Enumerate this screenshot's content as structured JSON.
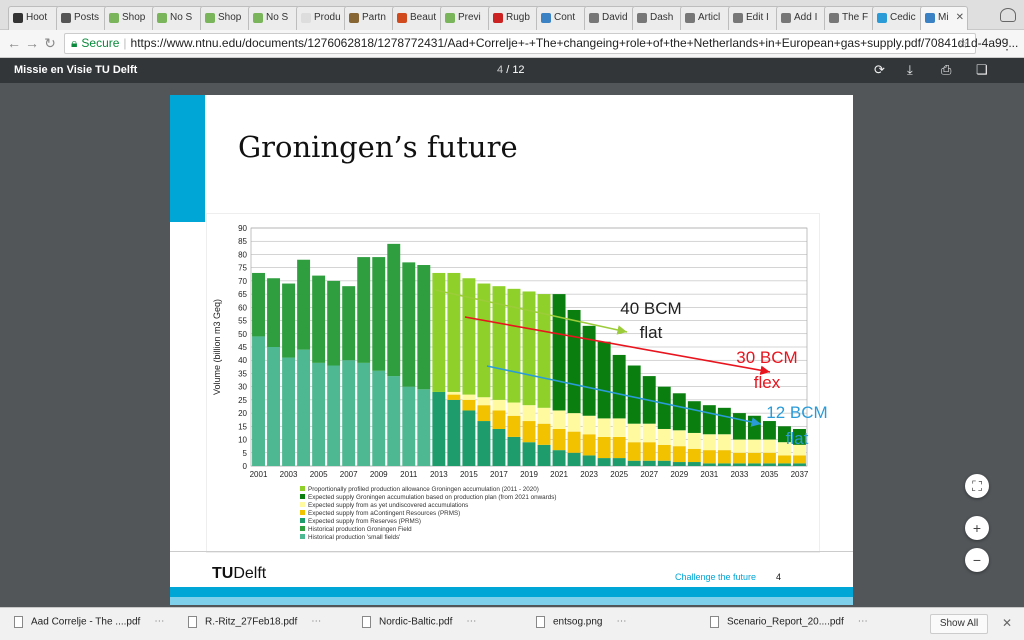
{
  "browser": {
    "tabs": [
      {
        "label": "Hoot",
        "color": "#333333"
      },
      {
        "label": "Posts",
        "color": "#555555"
      },
      {
        "label": "Shop",
        "color": "#7ab55c"
      },
      {
        "label": "No S",
        "color": "#7ab55c"
      },
      {
        "label": "Shop",
        "color": "#7ab55c"
      },
      {
        "label": "No S",
        "color": "#7ab55c"
      },
      {
        "label": "Produ",
        "color": "#dddddd"
      },
      {
        "label": "Partn",
        "color": "#886633"
      },
      {
        "label": "Beaut",
        "color": "#d04a1e"
      },
      {
        "label": "Previ",
        "color": "#7ab55c"
      },
      {
        "label": "Rugb",
        "color": "#cc2222"
      },
      {
        "label": "Cont",
        "color": "#3b82c4"
      },
      {
        "label": "David",
        "color": "#777777"
      },
      {
        "label": "Dash",
        "color": "#777777"
      },
      {
        "label": "Articl",
        "color": "#777777"
      },
      {
        "label": "Edit I",
        "color": "#777777"
      },
      {
        "label": "Add I",
        "color": "#777777"
      },
      {
        "label": "The F",
        "color": "#777777"
      },
      {
        "label": "Cedic",
        "color": "#2b9bd8"
      },
      {
        "label": "Mi",
        "color": "#3b82c4"
      }
    ],
    "secure_label": "Secure",
    "url": "https://www.ntnu.edu/documents/1276062818/1278772431/Aad+Correlje+-+The+changeing+role+of+the+Netherlands+in+European+gas+supply.pdf/70841d1d-4a99..."
  },
  "pdf": {
    "title": "Missie en Visie TU Delft",
    "page_current": "4",
    "page_separator": "/",
    "page_total": "12"
  },
  "slide": {
    "title": "Groningen’s future",
    "logo_prefix": "TU",
    "logo_suffix": "Delft",
    "tagline": "Challenge the future",
    "number": "4"
  },
  "chart_data": {
    "type": "bar",
    "ylabel": "Volume (billion m3 Geq)",
    "ylim": [
      0,
      90
    ],
    "yticks": [
      0,
      5,
      10,
      15,
      20,
      25,
      30,
      35,
      40,
      45,
      50,
      55,
      60,
      65,
      70,
      75,
      80,
      85,
      90
    ],
    "xticks": [
      "2001",
      "2003",
      "2005",
      "2007",
      "2009",
      "2011",
      "2013",
      "2015",
      "2017",
      "2019",
      "2021",
      "2023",
      "2025",
      "2027",
      "2029",
      "2031",
      "2033",
      "2035",
      "2037"
    ],
    "categories": [
      "2001",
      "2002",
      "2003",
      "2004",
      "2005",
      "2006",
      "2007",
      "2008",
      "2009",
      "2010",
      "2011",
      "2012",
      "2013",
      "2014",
      "2015",
      "2016",
      "2017",
      "2018",
      "2019",
      "2020",
      "2021",
      "2022",
      "2023",
      "2024",
      "2025",
      "2026",
      "2027",
      "2028",
      "2029",
      "2030",
      "2031",
      "2032",
      "2033",
      "2034",
      "2035",
      "2036",
      "2037"
    ],
    "series": [
      {
        "name": "Historical production 'small fields'",
        "color": "#4db891",
        "values": [
          49,
          45,
          41,
          44,
          39,
          38,
          40,
          39,
          36,
          34,
          30,
          29,
          0,
          0,
          0,
          0,
          0,
          0,
          0,
          0,
          0,
          0,
          0,
          0,
          0,
          0,
          0,
          0,
          0,
          0,
          0,
          0,
          0,
          0,
          0,
          0,
          0
        ]
      },
      {
        "name": "Historical production Groningen Field",
        "color": "#2e9e3e",
        "values": [
          24,
          26,
          28,
          34,
          33,
          32,
          28,
          40,
          43,
          50,
          47,
          47,
          0,
          0,
          0,
          0,
          0,
          0,
          0,
          0,
          0,
          0,
          0,
          0,
          0,
          0,
          0,
          0,
          0,
          0,
          0,
          0,
          0,
          0,
          0,
          0,
          0
        ]
      },
      {
        "name": "Expected supply from Reserves (PRMS)",
        "color": "#1e9c6c",
        "values": [
          0,
          0,
          0,
          0,
          0,
          0,
          0,
          0,
          0,
          0,
          0,
          0,
          28,
          25,
          21,
          17,
          14,
          11,
          9,
          8,
          6,
          5,
          4,
          3,
          3,
          2,
          2,
          2,
          1.5,
          1.5,
          1,
          1,
          1,
          1,
          1,
          1,
          1
        ]
      },
      {
        "name": "Expected supply from aContingent Resources (PRMS)",
        "color": "#f2c100",
        "values": [
          0,
          0,
          0,
          0,
          0,
          0,
          0,
          0,
          0,
          0,
          0,
          0,
          0,
          2,
          4,
          6,
          7,
          8,
          8,
          8,
          8,
          8,
          8,
          8,
          8,
          7,
          7,
          6,
          6,
          5,
          5,
          5,
          4,
          4,
          4,
          3,
          3
        ]
      },
      {
        "name": "Expected supply from as yet undiscovered accumulations",
        "color": "#fffaa0",
        "values": [
          0,
          0,
          0,
          0,
          0,
          0,
          0,
          0,
          0,
          0,
          0,
          0,
          0,
          1,
          2,
          3,
          4,
          5,
          6,
          6,
          7,
          7,
          7,
          7,
          7,
          7,
          7,
          6,
          6,
          6,
          6,
          6,
          5,
          5,
          5,
          5,
          4
        ]
      },
      {
        "name": "Expected supply Groningen accumulation based on production plan (from 2021 onwards)",
        "color": "#0a7f10",
        "values": [
          0,
          0,
          0,
          0,
          0,
          0,
          0,
          0,
          0,
          0,
          0,
          0,
          0,
          0,
          0,
          0,
          0,
          0,
          0,
          0,
          44,
          39,
          34,
          29,
          24,
          22,
          18,
          16,
          14,
          12,
          11,
          10,
          10,
          9,
          7,
          6,
          6
        ]
      },
      {
        "name": "Proportionally profiled production allowance Groningen accumulation (2011 - 2020)",
        "color": "#8fd12a",
        "values": [
          0,
          0,
          0,
          0,
          0,
          0,
          0,
          0,
          0,
          0,
          0,
          0,
          45,
          45,
          44,
          43,
          43,
          43,
          43,
          43,
          0,
          0,
          0,
          0,
          0,
          0,
          0,
          0,
          0,
          0,
          0,
          0,
          0,
          0,
          0,
          0,
          0
        ]
      }
    ],
    "legend_order": [
      6,
      5,
      4,
      3,
      2,
      1,
      0
    ],
    "legend_position": "below",
    "grid": true,
    "annotations": [
      {
        "text": "40 BCM",
        "color": "#222222"
      },
      {
        "text": "flat",
        "color": "#222222"
      },
      {
        "text": "30 BCM",
        "color": "#e8141e"
      },
      {
        "text": "flex",
        "color": "#e8141e"
      },
      {
        "text": "12 BCM",
        "color": "#2b9bd8"
      },
      {
        "text": "flat",
        "color": "#2b9bd8"
      }
    ]
  },
  "downloads": [
    {
      "name": "Aad Correlje - The ....pdf"
    },
    {
      "name": "R.-Ritz_27Feb18.pdf"
    },
    {
      "name": "Nordic-Baltic.pdf"
    },
    {
      "name": "entsog.png"
    },
    {
      "name": "Scenario_Report_20....pdf"
    }
  ],
  "show_all_label": "Show All",
  "icons": {
    "rotate": "⟳",
    "download": "⤓",
    "print": "⎙",
    "bookmark": "❏",
    "fit": "⛶",
    "zoom_in": "+",
    "zoom_out": "−",
    "close": "✕",
    "dots": "⋯",
    "menu": "⋮",
    "star": "☆"
  }
}
